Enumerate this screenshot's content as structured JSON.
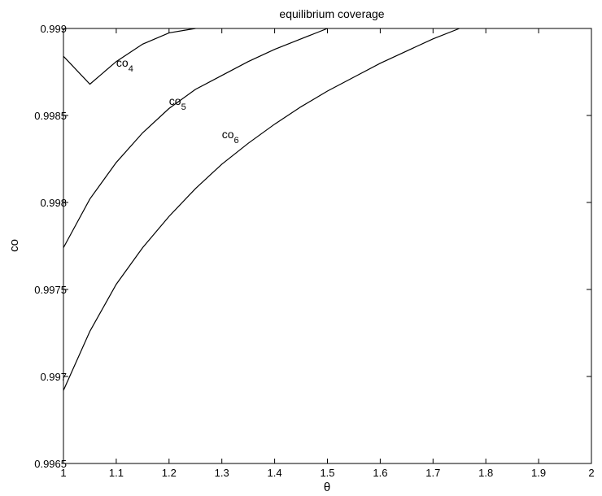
{
  "chart_data": {
    "type": "line",
    "title": "equilibrium coverage",
    "xlabel": "θ",
    "ylabel": "co",
    "xlim": [
      1,
      2
    ],
    "ylim": [
      0.9965,
      0.999
    ],
    "grid": false,
    "x_ticks": [
      1,
      1.1,
      1.2,
      1.3,
      1.4,
      1.5,
      1.6,
      1.7,
      1.8,
      1.9,
      2
    ],
    "x_tick_labels": [
      "1",
      "1.1",
      "1.2",
      "1.3",
      "1.4",
      "1.5",
      "1.6",
      "1.7",
      "1.8",
      "1.9",
      "2"
    ],
    "y_ticks": [
      0.9965,
      0.997,
      0.9975,
      0.998,
      0.9985,
      0.999
    ],
    "y_tick_labels": [
      "0.9965",
      "0.997",
      "0.9975",
      "0.998",
      "0.9985",
      "0.999"
    ],
    "series": [
      {
        "name": "co4",
        "label_base": "co",
        "label_sub": "4",
        "label_at": [
          1.1,
          0.99878
        ],
        "x": [
          1.0,
          1.05,
          1.1,
          1.15,
          1.2,
          1.25
        ],
        "y": [
          0.99884,
          0.99868,
          0.99881,
          0.99891,
          0.998975,
          0.999
        ]
      },
      {
        "name": "co5",
        "label_base": "co",
        "label_sub": "5",
        "label_at": [
          1.2,
          0.99856
        ],
        "x": [
          1.0,
          1.05,
          1.1,
          1.15,
          1.2,
          1.25,
          1.3,
          1.35,
          1.4,
          1.45,
          1.5
        ],
        "y": [
          0.99774,
          0.99802,
          0.99823,
          0.9984,
          0.99854,
          0.99865,
          0.99873,
          0.99881,
          0.99888,
          0.99894,
          0.999
        ]
      },
      {
        "name": "co6",
        "label_base": "co",
        "label_sub": "6",
        "label_at": [
          1.3,
          0.99837
        ],
        "x": [
          1.0,
          1.05,
          1.1,
          1.15,
          1.2,
          1.25,
          1.3,
          1.35,
          1.4,
          1.45,
          1.5,
          1.55,
          1.6,
          1.65,
          1.7,
          1.75
        ],
        "y": [
          0.99692,
          0.99726,
          0.99753,
          0.99774,
          0.99792,
          0.99808,
          0.99822,
          0.99834,
          0.99845,
          0.99855,
          0.99864,
          0.99872,
          0.9988,
          0.99887,
          0.99894,
          0.999
        ]
      }
    ]
  }
}
